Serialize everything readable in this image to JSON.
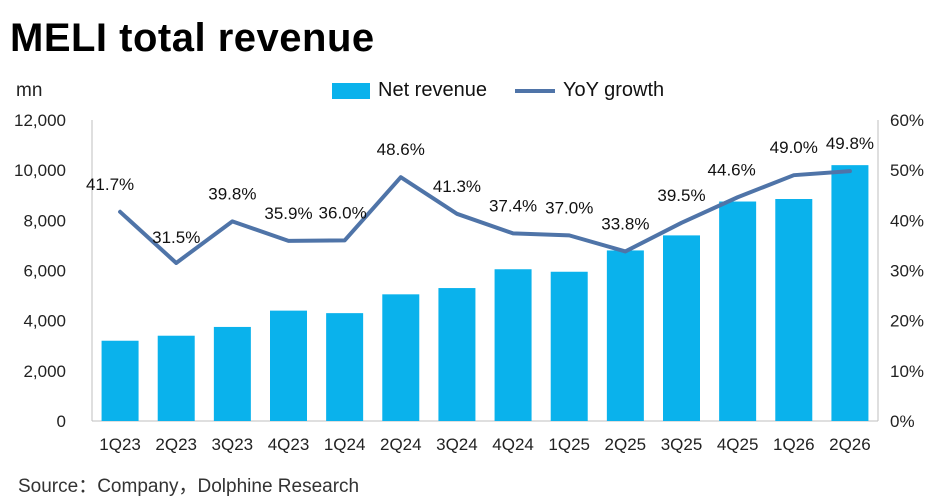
{
  "title": "MELI total revenue",
  "unit_label": "mn",
  "source": "Source：Company，Dolphine Research",
  "legend": {
    "bar_label": "Net revenue",
    "line_label": "YoY growth"
  },
  "colors": {
    "bar": "#0ab2ec",
    "line": "#4f74a8"
  },
  "chart_data": {
    "type": "bar",
    "categories": [
      "1Q23",
      "2Q23",
      "3Q23",
      "4Q23",
      "1Q24",
      "2Q24",
      "3Q24",
      "4Q24",
      "1Q25",
      "2Q25",
      "3Q25",
      "4Q25",
      "1Q26",
      "2Q26"
    ],
    "series": [
      {
        "name": "Net revenue",
        "type": "bar",
        "axis": "left",
        "values": [
          3200,
          3400,
          3750,
          4400,
          4300,
          5050,
          5300,
          6050,
          5950,
          6800,
          7400,
          8750,
          8850,
          10200
        ]
      },
      {
        "name": "YoY growth",
        "type": "line",
        "axis": "right",
        "values": [
          41.7,
          31.5,
          39.8,
          35.9,
          36.0,
          48.6,
          41.3,
          37.4,
          37.0,
          33.8,
          39.5,
          44.6,
          49.0,
          49.8
        ],
        "labels": [
          "41.7%",
          "31.5%",
          "39.8%",
          "35.9%",
          "36.0%",
          "48.6%",
          "41.3%",
          "37.4%",
          "37.0%",
          "33.8%",
          "39.5%",
          "44.6%",
          "49.0%",
          "49.8%"
        ]
      }
    ],
    "left_axis": {
      "ticks": [
        "0",
        "2,000",
        "4,000",
        "6,000",
        "8,000",
        "10,000",
        "12,000"
      ],
      "ylim": [
        0,
        12000
      ]
    },
    "right_axis": {
      "ticks": [
        "0%",
        "10%",
        "20%",
        "30%",
        "40%",
        "50%",
        "60%"
      ],
      "ylim": [
        0,
        60
      ]
    },
    "grid": false,
    "legend_position": "top"
  }
}
